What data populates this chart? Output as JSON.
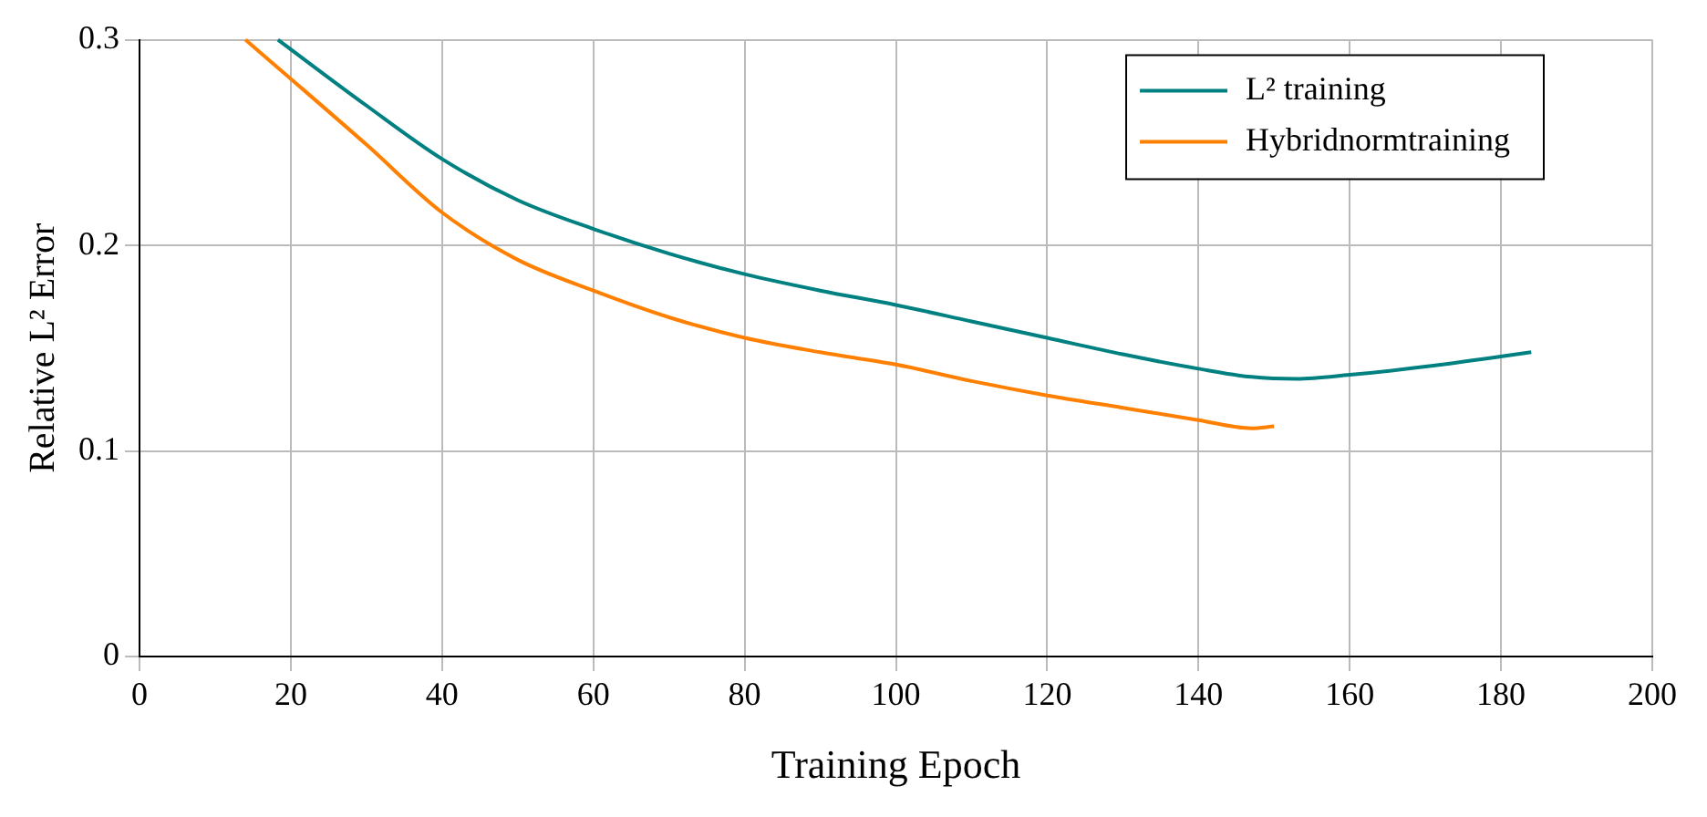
{
  "chart_data": {
    "type": "line",
    "xlabel": "Training Epoch",
    "ylabel": "Relative L² Error",
    "xlim": [
      0,
      200
    ],
    "xticks": [
      0,
      20,
      40,
      60,
      80,
      100,
      120,
      140,
      160,
      180,
      200
    ],
    "ylim": [
      0,
      0.3
    ],
    "yticks": [
      0,
      0.1,
      0.2,
      0.3
    ],
    "grid": true,
    "legend": "top right",
    "marker": "none",
    "line_style": "solid",
    "series": [
      {
        "name": "L² training",
        "color": "#008080",
        "x": [
          18.3,
          30,
          40,
          50,
          60,
          70,
          80,
          90,
          100,
          110,
          120,
          130,
          140,
          147,
          153,
          160,
          170,
          184
        ],
        "values": [
          0.3,
          0.268,
          0.242,
          0.222,
          0.208,
          0.196,
          0.186,
          0.178,
          0.171,
          0.163,
          0.155,
          0.147,
          0.14,
          0.136,
          0.135,
          0.137,
          0.141,
          0.148
        ]
      },
      {
        "name": "Hybridnormtraining",
        "color": "#ff8000",
        "x": [
          14,
          20,
          30,
          40,
          50,
          60,
          70,
          80,
          90,
          100,
          110,
          120,
          130,
          140,
          147,
          150
        ],
        "values": [
          0.3,
          0.281,
          0.249,
          0.216,
          0.193,
          0.178,
          0.165,
          0.155,
          0.148,
          0.142,
          0.134,
          0.127,
          0.121,
          0.115,
          0.111,
          0.112
        ]
      }
    ]
  }
}
